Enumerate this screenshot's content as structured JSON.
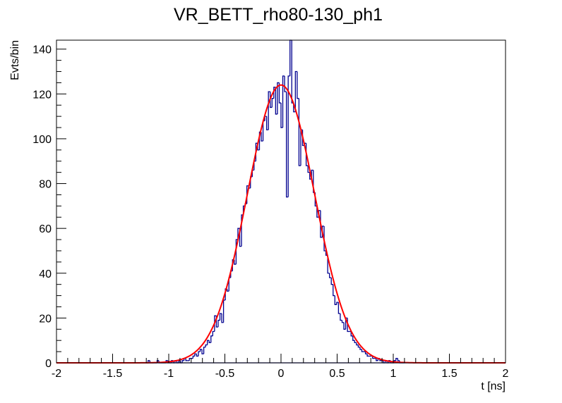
{
  "chart_data": {
    "type": "bar",
    "style": "step-histogram",
    "title": "VR_BETT_rho80-130_ph1",
    "xlabel": "t [ns]",
    "ylabel": "Evts/bin",
    "xlim": [
      -2,
      2
    ],
    "ylim": [
      0,
      144
    ],
    "xticks": [
      "-2",
      "-1.5",
      "-1",
      "-0.5",
      "0",
      "0.5",
      "1",
      "1.5",
      "2"
    ],
    "xtick_values": [
      -2,
      -1.5,
      -1,
      -0.5,
      0,
      0.5,
      1,
      1.5,
      2
    ],
    "yticks": [
      "0",
      "20",
      "40",
      "60",
      "80",
      "100",
      "120",
      "140"
    ],
    "ytick_values": [
      0,
      20,
      40,
      60,
      80,
      100,
      120,
      140
    ],
    "grid": false,
    "histogram": {
      "bin_start": -1.2,
      "bin_width": 0.016,
      "counts": [
        0,
        1,
        0,
        0,
        0,
        0,
        1,
        0,
        0,
        0,
        0,
        1,
        0,
        0,
        1,
        0,
        1,
        0,
        1,
        0,
        1,
        2,
        1,
        1,
        2,
        2,
        3,
        4,
        3,
        5,
        6,
        4,
        7,
        8,
        10,
        9,
        12,
        14,
        21,
        16,
        19,
        22,
        18,
        28,
        33,
        32,
        38,
        41,
        46,
        44,
        55,
        60,
        52,
        66,
        70,
        71,
        79,
        78,
        83,
        86,
        90,
        98,
        95,
        103,
        99,
        108,
        110,
        104,
        121,
        114,
        118,
        123,
        111,
        125,
        116,
        105,
        128,
        121,
        74,
        128,
        144,
        116,
        112,
        130,
        118,
        88,
        104,
        97,
        98,
        88,
        85,
        82,
        86,
        76,
        70,
        65,
        68,
        56,
        61,
        50,
        48,
        40,
        38,
        35,
        30,
        26,
        27,
        22,
        19,
        18,
        15,
        20,
        14,
        14,
        12,
        10,
        9,
        8,
        7,
        6,
        5,
        5,
        4,
        3,
        3,
        3,
        2,
        2,
        1,
        2,
        1,
        1,
        0,
        1,
        0,
        1,
        0,
        0,
        1,
        2,
        1,
        0,
        0,
        0
      ],
      "color": "#00008f"
    },
    "fit": {
      "function": "gaus",
      "amplitude": 124,
      "mean": 0.0,
      "sigma": 0.3,
      "color": "#ff0000"
    }
  }
}
